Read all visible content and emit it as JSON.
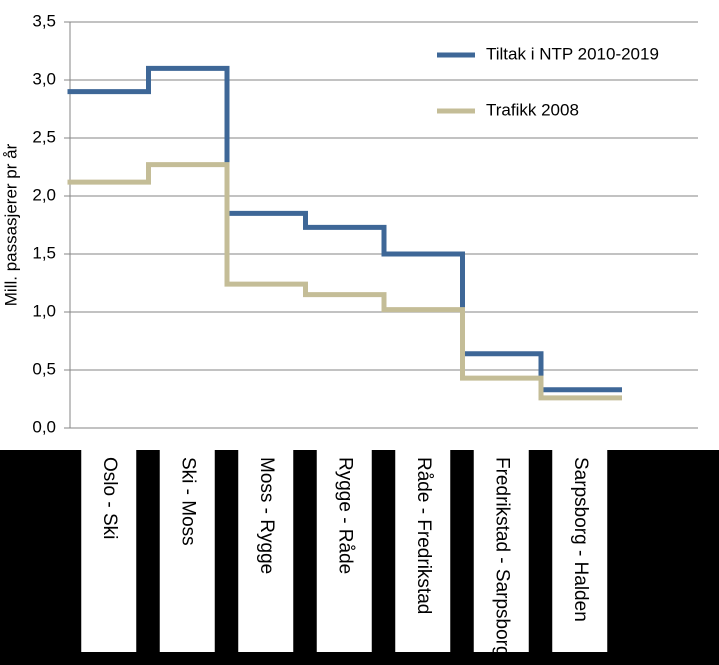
{
  "chart_data": {
    "type": "step",
    "y_label": "Mill. passasjerer pr år",
    "categories": [
      "Oslo - Ski",
      "Ski - Moss",
      "Moss - Rygge",
      "Rygge - Råde",
      "Råde - Fredrikstad",
      "Fredrikstad - Sarpsborg",
      "Sarpsborg - Halden",
      null
    ],
    "series": [
      {
        "name": "Tiltak i NTP 2010-2019",
        "color": "#3e6797",
        "values": [
          2.9,
          3.1,
          1.85,
          1.73,
          1.5,
          0.64,
          0.33,
          null
        ]
      },
      {
        "name": "Trafikk 2008",
        "color": "#c4bd97",
        "values": [
          2.12,
          2.27,
          1.24,
          1.15,
          1.02,
          0.43,
          0.26,
          null
        ]
      }
    ],
    "ylim": [
      0,
      3.5
    ],
    "yticks": [
      {
        "value": 0,
        "label": "0,0"
      },
      {
        "value": 0.5,
        "label": "0,5"
      },
      {
        "value": 1,
        "label": "1,0"
      },
      {
        "value": 1.5,
        "label": "1,5"
      },
      {
        "value": 2,
        "label": "2,0"
      },
      {
        "value": 2.5,
        "label": "2,5"
      },
      {
        "value": 3,
        "label": "3,0"
      },
      {
        "value": 3.5,
        "label": "3,5"
      }
    ],
    "grid": true,
    "legend": "top-right"
  }
}
